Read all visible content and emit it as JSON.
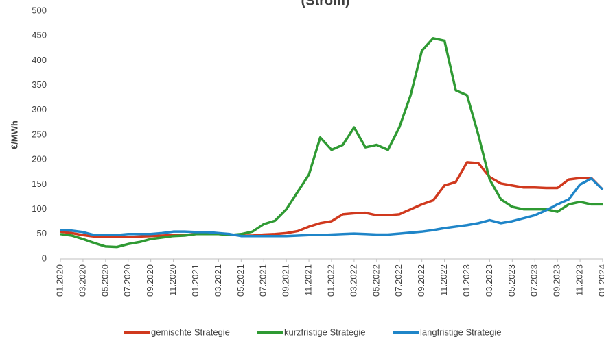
{
  "chart_data": {
    "type": "line",
    "title": "(Strom)",
    "y_label": "€/MWh",
    "categories": [
      "01.2020",
      null,
      "03.2020",
      null,
      "05.2020",
      null,
      "07.2020",
      null,
      "09.2020",
      null,
      "11.2020",
      null,
      "01.2021",
      null,
      "03.2021",
      null,
      "05.2021",
      null,
      "07.2021",
      null,
      "09.2021",
      null,
      "11.2021",
      null,
      "01.2022",
      null,
      "03.2022",
      null,
      "05.2022",
      null,
      "07.2022",
      null,
      "09.2022",
      null,
      "11.2022",
      null,
      "01.2023",
      null,
      "03.2023",
      null,
      "05.2023",
      null,
      "07.2023",
      null,
      "09.2023",
      null,
      "11.2023",
      null,
      "01.2024"
    ],
    "series": [
      {
        "name": "gemischte Strategie",
        "color": "#d0391e",
        "values": [
          55,
          52,
          48,
          45,
          44,
          44,
          44,
          45,
          46,
          47,
          48,
          48,
          50,
          50,
          50,
          49,
          47,
          47,
          49,
          50,
          52,
          56,
          65,
          72,
          76,
          90,
          92,
          93,
          88,
          88,
          90,
          100,
          110,
          118,
          148,
          155,
          195,
          193,
          165,
          152,
          148,
          144,
          144,
          143,
          143,
          160,
          163,
          163,
          140
        ]
      },
      {
        "name": "kurzfristige Strategie",
        "color": "#2f9a33",
        "values": [
          50,
          47,
          40,
          32,
          25,
          24,
          30,
          34,
          40,
          43,
          46,
          47,
          50,
          50,
          50,
          48,
          50,
          55,
          70,
          77,
          100,
          135,
          170,
          245,
          220,
          230,
          265,
          225,
          230,
          220,
          265,
          330,
          420,
          445,
          440,
          340,
          330,
          250,
          160,
          120,
          105,
          100,
          100,
          100,
          95,
          110,
          115,
          110,
          110
        ]
      },
      {
        "name": "langfristige Strategie",
        "color": "#1f85c8",
        "values": [
          58,
          57,
          54,
          48,
          48,
          48,
          50,
          50,
          50,
          52,
          55,
          55,
          54,
          54,
          52,
          50,
          46,
          46,
          46,
          46,
          46,
          47,
          48,
          48,
          49,
          50,
          51,
          50,
          49,
          49,
          51,
          53,
          55,
          58,
          62,
          65,
          68,
          72,
          78,
          72,
          76,
          82,
          88,
          98,
          110,
          120,
          150,
          162,
          140
        ]
      }
    ],
    "ylim": [
      0,
      500
    ],
    "yticks": [
      0,
      50,
      100,
      150,
      200,
      250,
      300,
      350,
      400,
      450,
      500
    ],
    "grid": false
  }
}
